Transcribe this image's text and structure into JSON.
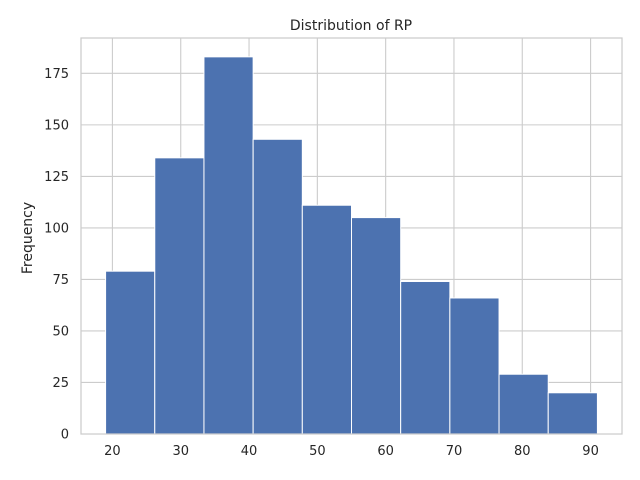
{
  "chart_data": {
    "type": "histogram",
    "title": "Distribution of RP",
    "xlabel": "",
    "ylabel": "Frequency",
    "bin_edges": [
      19.0,
      26.2,
      33.4,
      40.6,
      47.8,
      55.0,
      62.2,
      69.4,
      76.6,
      83.8,
      91.0
    ],
    "values": [
      79,
      134,
      183,
      143,
      111,
      105,
      74,
      66,
      29,
      20
    ],
    "xlim": [
      15.4,
      94.6
    ],
    "ylim": [
      0,
      192.15
    ],
    "xticks": [
      20,
      30,
      40,
      50,
      60,
      70,
      80,
      90
    ],
    "yticks": [
      0,
      25,
      50,
      75,
      100,
      125,
      150,
      175
    ],
    "grid": true,
    "bar_color": "#4c72b0"
  }
}
